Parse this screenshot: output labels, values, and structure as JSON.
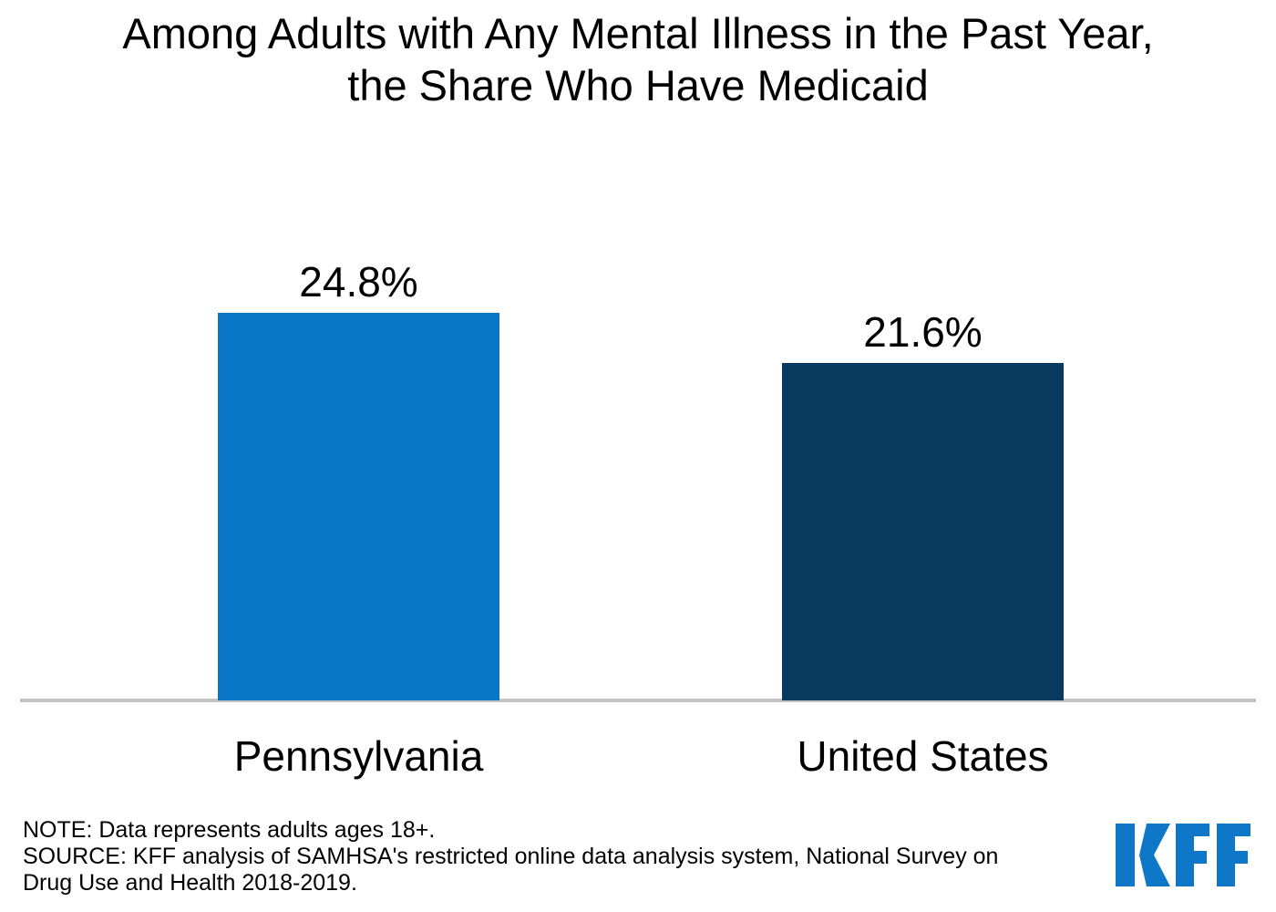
{
  "title": "Among Adults with Any Mental Illness in the Past Year,\nthe Share Who Have Medicaid",
  "chart_data": {
    "type": "bar",
    "title": "Among Adults with Any Mental Illness in the Past Year, the Share Who Have Medicaid",
    "categories": [
      "Pennsylvania",
      "United States"
    ],
    "values": [
      24.8,
      21.6
    ],
    "value_labels": [
      "24.8%",
      "21.6%"
    ],
    "bar_colors": [
      "#0A77C6",
      "#073A5E"
    ],
    "xlabel": "",
    "ylabel": "",
    "ylim": [
      0,
      28
    ],
    "grid": false,
    "legend": false,
    "axis_line_color": "#C3C3C3"
  },
  "footer": {
    "note": "NOTE: Data represents adults ages 18+.",
    "source": "SOURCE: KFF analysis of SAMHSA's restricted online data analysis system, National Survey on Drug Use and Health 2018-2019.",
    "logo_text": "KFF",
    "logo_color": "#0E77C8"
  }
}
